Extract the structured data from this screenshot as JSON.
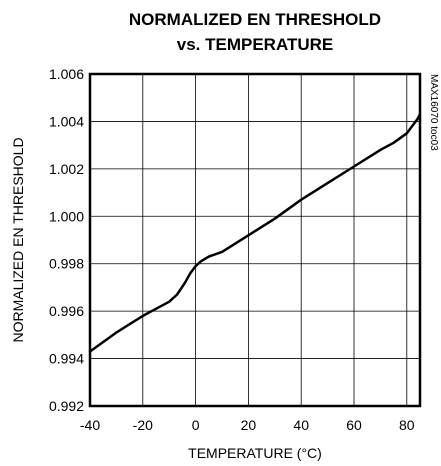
{
  "chart_data": {
    "type": "line",
    "title": [
      "NORMALIZED EN THRESHOLD",
      "vs. TEMPERATURE"
    ],
    "xlabel": "TEMPERATURE (°C)",
    "ylabel": "NORMALIZED EN THRESHOLD",
    "part_label": "MAX16070 toc03",
    "xlim": [
      -40,
      85
    ],
    "ylim": [
      0.992,
      1.006
    ],
    "x_ticks": [
      -40,
      -20,
      0,
      20,
      40,
      60,
      80
    ],
    "y_ticks": [
      "0.992",
      "0.994",
      "0.996",
      "0.998",
      "1.000",
      "1.002",
      "1.004",
      "1.006"
    ],
    "grid": true,
    "series": [
      {
        "x": [
          -40,
          -30,
          -20,
          -15,
          -10,
          -7,
          -4,
          -2,
          0,
          2,
          5,
          10,
          20,
          30,
          40,
          50,
          60,
          70,
          75,
          80,
          82,
          84,
          85
        ],
        "y": [
          0.9943,
          0.9951,
          0.9958,
          0.9961,
          0.9964,
          0.9967,
          0.9972,
          0.9976,
          0.9979,
          0.9981,
          0.9983,
          0.9985,
          0.9992,
          0.9999,
          1.0007,
          1.0014,
          1.0021,
          1.0028,
          1.0031,
          1.0035,
          1.0038,
          1.0041,
          1.0043
        ]
      }
    ]
  }
}
